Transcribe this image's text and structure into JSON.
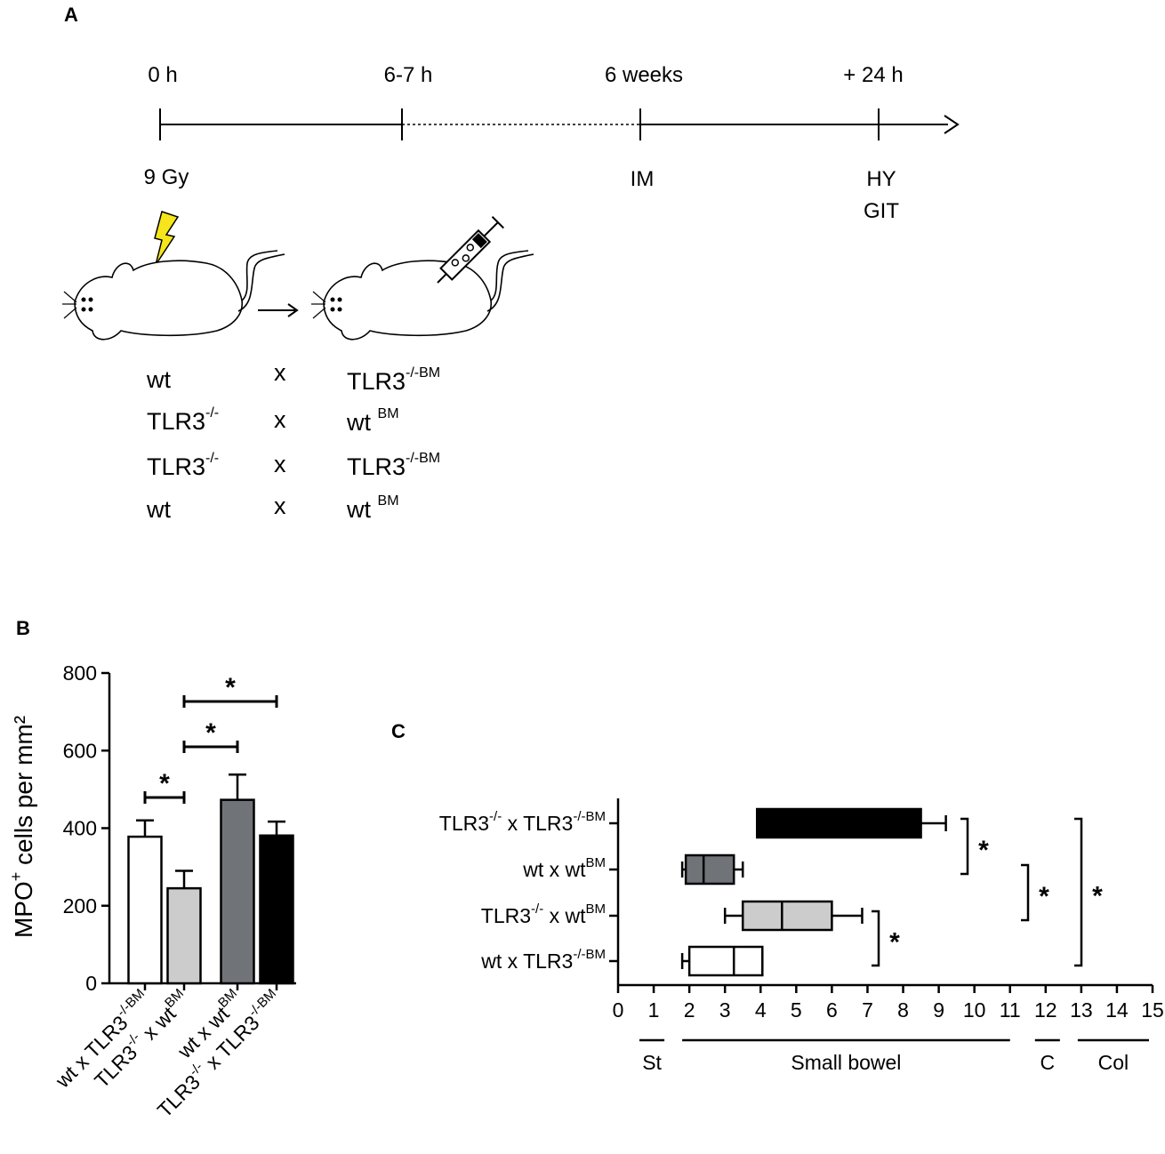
{
  "panel_a": {
    "label": "A",
    "timeline": [
      {
        "time": "0 h",
        "event": "9 Gy",
        "event2": ""
      },
      {
        "time": "6-7 h",
        "event": "",
        "event2": ""
      },
      {
        "time": "6 weeks",
        "event": "IM",
        "event2": ""
      },
      {
        "time": "+ 24 h",
        "event": "HY",
        "event2": "GIT"
      }
    ],
    "icons": [
      "lightning-icon",
      "mouse-icon",
      "arrow-icon",
      "syringe-icon"
    ],
    "crosses": [
      {
        "recipient": "wt",
        "recipient_sup": "",
        "x": "x",
        "donor": "TLR3",
        "donor_sup": "-/-BM"
      },
      {
        "recipient": "TLR3",
        "recipient_sup": "-/-",
        "x": "x",
        "donor": "wt ",
        "donor_sup": "BM"
      },
      {
        "recipient": "TLR3",
        "recipient_sup": "-/-",
        "x": "x",
        "donor": "TLR3",
        "donor_sup": "-/-BM"
      },
      {
        "recipient": "wt",
        "recipient_sup": "",
        "x": "x",
        "donor": "wt ",
        "donor_sup": "BM"
      }
    ]
  },
  "panel_b": {
    "label": "B"
  },
  "panel_c": {
    "label": "C"
  },
  "colors": {
    "white": "#ffffff",
    "light_grey": "#cccccc",
    "dark_grey": "#707478",
    "black": "#000000"
  },
  "chart_data": [
    {
      "type": "bar",
      "ylabel_main": "MPO",
      "ylabel_sup": "+",
      "ylabel_rest": " cells per mm²",
      "ylim": [
        0,
        800
      ],
      "yticks": [
        0,
        200,
        400,
        600,
        800
      ],
      "categories": [
        {
          "main": "wt x TLR3",
          "sup": "-/-BM",
          "main2": ""
        },
        {
          "main": "TLR3",
          "sup": "-/-",
          "main2": " x wt",
          "sup2": "BM"
        },
        {
          "main": "wt x wt",
          "sup": "BM",
          "main2": ""
        },
        {
          "main": "TLR3",
          "sup": "-/-",
          "main2": " x TLR3",
          "sup2": "-/-BM"
        }
      ],
      "values": [
        378,
        245,
        473,
        381
      ],
      "errors": [
        42,
        45,
        65,
        36
      ],
      "bar_colors": [
        "#ffffff",
        "#cccccc",
        "#707478",
        "#000000"
      ],
      "significance": [
        {
          "from": 0,
          "to": 1,
          "label": "*"
        },
        {
          "from": 1,
          "to": 2,
          "label": "*"
        },
        {
          "from": 1,
          "to": 3,
          "label": "*"
        }
      ]
    },
    {
      "type": "box",
      "orientation": "horizontal",
      "xlim": [
        0,
        15
      ],
      "xticks": [
        0,
        1,
        2,
        3,
        4,
        5,
        6,
        7,
        8,
        9,
        10,
        11,
        12,
        13,
        14,
        15
      ],
      "series": [
        {
          "label_main": "TLR3",
          "label_sup": "-/-",
          "label_main2": " x TLR3",
          "label_sup2": "-/-BM",
          "min": 3.9,
          "q1": 3.9,
          "median": 3.9,
          "q3": 8.5,
          "max": 9.2,
          "color": "#000000"
        },
        {
          "label_main": "wt x wt",
          "label_sup": "BM",
          "label_main2": "",
          "label_sup2": "",
          "min": 1.8,
          "q1": 1.9,
          "median": 2.4,
          "q3": 3.25,
          "max": 3.5,
          "color": "#707478"
        },
        {
          "label_main": "TLR3",
          "label_sup": "-/-",
          "label_main2": " x wt",
          "label_sup2": "BM",
          "min": 3.0,
          "q1": 3.5,
          "median": 4.6,
          "q3": 6.0,
          "max": 6.85,
          "color": "#cccccc"
        },
        {
          "label_main": "wt x TLR3",
          "label_sup": "-/-BM",
          "label_main2": "",
          "label_sup2": "",
          "min": 1.8,
          "q1": 2.0,
          "median": 3.25,
          "q3": 4.05,
          "max": 4.05,
          "color": "#ffffff"
        }
      ],
      "segments": [
        {
          "label": "St",
          "from": 0.6,
          "to": 1.3
        },
        {
          "label": "Small bowel",
          "from": 1.8,
          "to": 11.0
        },
        {
          "label": "C",
          "from": 11.7,
          "to": 12.4
        },
        {
          "label": "Col",
          "from": 12.9,
          "to": 14.9
        }
      ],
      "significance": [
        {
          "from": 0,
          "to": 1,
          "label": "*"
        },
        {
          "from": 1,
          "to": 2,
          "label": "*"
        },
        {
          "from": 0,
          "to": 3,
          "label": "*"
        },
        {
          "from": 2,
          "to": 3,
          "label": "*"
        }
      ]
    }
  ]
}
